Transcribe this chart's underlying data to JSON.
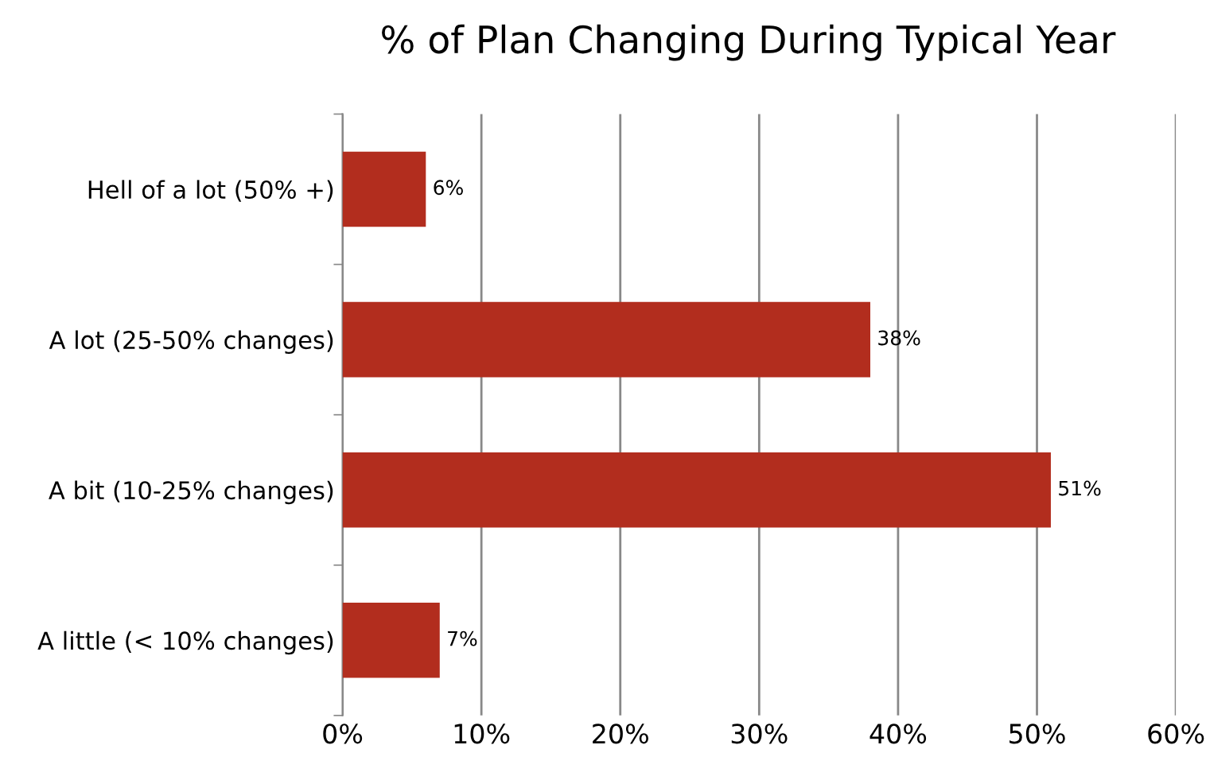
{
  "chart_data": {
    "type": "bar",
    "orientation": "horizontal",
    "title": "% of Plan Changing During Typical Year",
    "categories": [
      "Hell of a lot (50% +)",
      "A lot (25-50% changes)",
      "A bit (10-25% changes)",
      "A little (< 10% changes)"
    ],
    "values": [
      6,
      38,
      51,
      7
    ],
    "color": "#b22d1e",
    "value_labels": [
      "6%",
      "38%",
      "51%",
      "7%"
    ],
    "xlim": [
      0,
      60
    ],
    "xticks": [
      {
        "value": 0,
        "label": "0%"
      },
      {
        "value": 10,
        "label": "10%"
      },
      {
        "value": 20,
        "label": "20%"
      },
      {
        "value": 30,
        "label": "30%"
      },
      {
        "value": 40,
        "label": "40%"
      },
      {
        "value": 50,
        "label": "50%"
      },
      {
        "value": 60,
        "label": "60%"
      }
    ],
    "grid": "x"
  }
}
